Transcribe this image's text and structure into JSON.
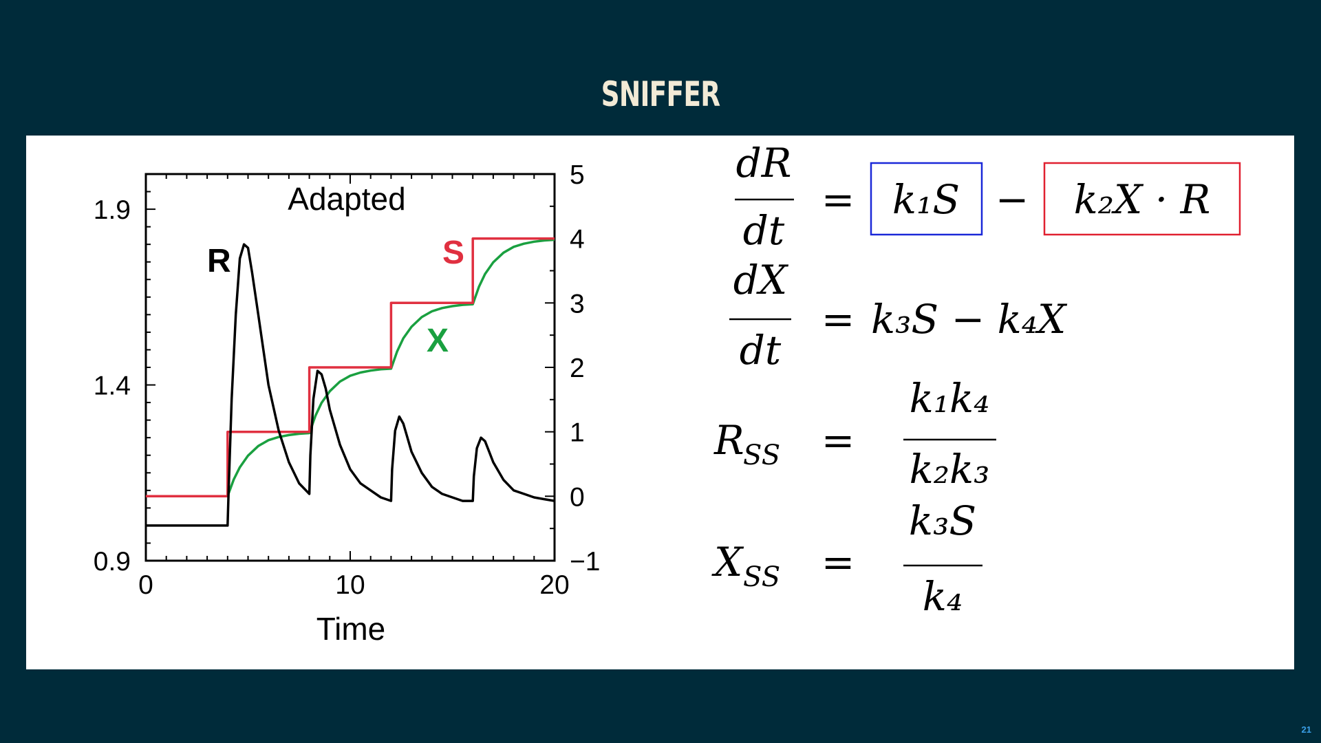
{
  "slide": {
    "title": "SNIFFER",
    "page_number": "21"
  },
  "colors": {
    "background": "#002b3a",
    "title": "#f2ead6",
    "panel": "#ffffff",
    "R": "#000000",
    "S": "#e03040",
    "X": "#1aa040",
    "box_k1S": "#1a28d8",
    "box_k2XR": "#e02030",
    "page_number": "#3aa0e8"
  },
  "chart_data": {
    "type": "line",
    "title": "Adapted",
    "xlabel": "Time",
    "ylabel": "",
    "xlim": [
      0,
      20
    ],
    "ylim": [
      0.9,
      2.0
    ],
    "y2lim": [
      -1,
      5
    ],
    "x_ticks": [
      "0",
      "10",
      "20"
    ],
    "y_ticks": [
      "0.9",
      "1.4",
      "1.9"
    ],
    "y2_ticks": [
      "−1",
      "0",
      "1",
      "2",
      "3",
      "4",
      "5"
    ],
    "grid": false,
    "legend": "inline labels",
    "series": [
      {
        "name": "R",
        "axis": "left",
        "color": "#000000",
        "x": [
          0,
          4,
          4.05,
          4.2,
          4.4,
          4.6,
          4.8,
          5.0,
          5.2,
          5.5,
          6.0,
          6.5,
          7.0,
          7.5,
          8.0,
          8.05,
          8.2,
          8.4,
          8.6,
          8.8,
          9.0,
          9.5,
          10.0,
          10.5,
          11.0,
          11.5,
          12.0,
          12.05,
          12.2,
          12.4,
          12.6,
          12.8,
          13.0,
          13.5,
          14.0,
          14.5,
          15.0,
          15.5,
          16.0,
          16.05,
          16.2,
          16.4,
          16.6,
          16.8,
          17.0,
          17.5,
          18.0,
          18.5,
          19.0,
          19.5,
          20.0
        ],
        "y": [
          1.0,
          1.0,
          1.1,
          1.36,
          1.6,
          1.76,
          1.8,
          1.79,
          1.72,
          1.6,
          1.4,
          1.27,
          1.18,
          1.12,
          1.09,
          1.2,
          1.36,
          1.44,
          1.43,
          1.39,
          1.33,
          1.23,
          1.16,
          1.12,
          1.1,
          1.08,
          1.07,
          1.16,
          1.27,
          1.31,
          1.29,
          1.25,
          1.21,
          1.15,
          1.11,
          1.09,
          1.08,
          1.07,
          1.07,
          1.14,
          1.22,
          1.25,
          1.24,
          1.21,
          1.18,
          1.13,
          1.1,
          1.09,
          1.08,
          1.075,
          1.07
        ]
      },
      {
        "name": "S",
        "axis": "right",
        "color": "#e03040",
        "x": [
          0,
          4,
          4,
          8,
          8,
          12,
          12,
          16,
          16,
          20
        ],
        "y": [
          0,
          0,
          1,
          1,
          2,
          2,
          3,
          3,
          4,
          4
        ]
      },
      {
        "name": "X",
        "axis": "right",
        "color": "#1aa040",
        "x": [
          0,
          4,
          4.3,
          4.6,
          5.0,
          5.5,
          6.0,
          6.5,
          7.0,
          7.5,
          8.0,
          8.3,
          8.6,
          9.0,
          9.5,
          10.0,
          10.5,
          11.0,
          11.5,
          12.0,
          12.3,
          12.6,
          13.0,
          13.5,
          14.0,
          14.5,
          15.0,
          15.5,
          16.0,
          16.3,
          16.6,
          17.0,
          17.5,
          18.0,
          18.5,
          19.0,
          19.5,
          20.0
        ],
        "y": [
          0,
          0,
          0.26,
          0.45,
          0.63,
          0.78,
          0.87,
          0.92,
          0.95,
          0.97,
          0.98,
          1.25,
          1.45,
          1.63,
          1.78,
          1.87,
          1.92,
          1.95,
          1.97,
          1.98,
          2.25,
          2.45,
          2.63,
          2.78,
          2.87,
          2.92,
          2.95,
          2.97,
          2.98,
          3.25,
          3.45,
          3.63,
          3.78,
          3.87,
          3.92,
          3.95,
          3.97,
          3.98
        ]
      }
    ]
  },
  "equations": {
    "eq1": {
      "lhs_num": "dR",
      "lhs_den": "dt",
      "term1": "k₁S",
      "op": "−",
      "term2": "k₂X · R"
    },
    "eq2": {
      "lhs_num": "dX",
      "lhs_den": "dt",
      "rhs": "k₃S − k₄X"
    },
    "eq3": {
      "lhs": "R",
      "lhs_sub": "SS",
      "num": "k₁k₄",
      "den": "k₂k₃"
    },
    "eq4": {
      "lhs": "X",
      "lhs_sub": "SS",
      "num": "k₃S",
      "den": "k₄"
    },
    "equals": "="
  }
}
